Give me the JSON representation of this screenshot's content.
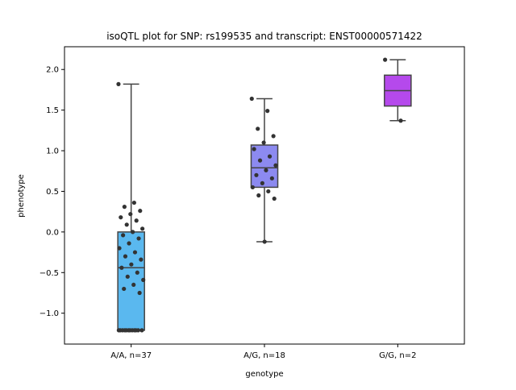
{
  "chart_data": {
    "type": "box",
    "title": "isoQTL plot for SNP: rs199535 and transcript: ENST00000571422",
    "xlabel": "genotype",
    "ylabel": "phenotype",
    "ylim": [
      -1.38,
      2.28
    ],
    "yticks": [
      -1.0,
      -0.5,
      0.0,
      0.5,
      1.0,
      1.5,
      2.0
    ],
    "ytick_labels": [
      "−1.0",
      "−0.5",
      "0.0",
      "0.5",
      "1.0",
      "1.5",
      "2.0"
    ],
    "grid": false,
    "categories": [
      "A/A, n=37",
      "A/G, n=18",
      "G/G, n=2"
    ],
    "boxes": [
      {
        "category": "A/A, n=37",
        "color": "#5ab8ef",
        "whisker_low": -1.21,
        "q1": -1.21,
        "median": -0.44,
        "q3": 0.0,
        "whisker_high": 1.82
      },
      {
        "category": "A/G, n=18",
        "color": "#8c8af0",
        "whisker_low": -0.12,
        "q1": 0.55,
        "median": 0.79,
        "q3": 1.07,
        "whisker_high": 1.64
      },
      {
        "category": "G/G, n=2",
        "color": "#b549ec",
        "whisker_low": 1.37,
        "q1": 1.55,
        "median": 1.74,
        "q3": 1.93,
        "whisker_high": 2.12
      }
    ],
    "points": [
      {
        "category": "A/A, n=37",
        "values": [
          1.82,
          0.36,
          0.31,
          0.26,
          0.22,
          0.18,
          0.14,
          0.09,
          0.04,
          0.0,
          -0.04,
          -0.08,
          -0.14,
          -0.2,
          -0.25,
          -0.3,
          -0.34,
          -0.4,
          -0.44,
          -0.5,
          -0.55,
          -0.59,
          -0.65,
          -0.7,
          -0.75,
          -1.21,
          -1.21,
          -1.21,
          -1.21,
          -1.21,
          -1.21,
          -1.21,
          -1.21,
          -1.21,
          -1.21,
          -1.21,
          -1.21
        ]
      },
      {
        "category": "A/G, n=18",
        "values": [
          1.64,
          1.49,
          1.27,
          1.18,
          1.1,
          1.02,
          0.93,
          0.88,
          0.82,
          0.76,
          0.7,
          0.66,
          0.6,
          0.55,
          0.5,
          0.45,
          0.41,
          -0.12
        ]
      },
      {
        "category": "G/G, n=2",
        "values": [
          2.12,
          1.37
        ]
      }
    ]
  }
}
